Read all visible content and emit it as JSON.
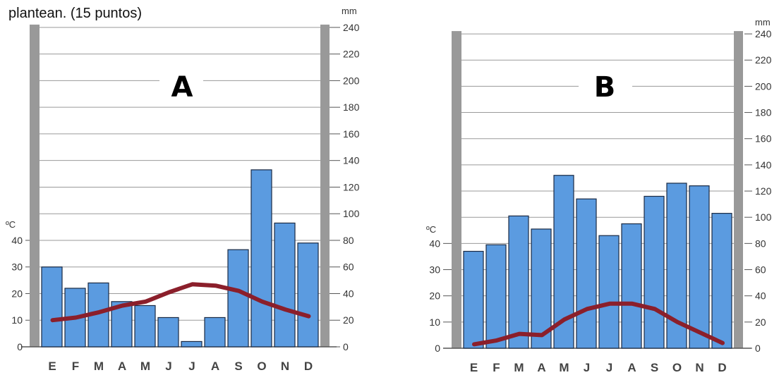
{
  "caption": "plantean. (15 puntos)",
  "chart_data": [
    {
      "type": "bar",
      "title": "A",
      "categories": [
        "E",
        "F",
        "M",
        "A",
        "M",
        "J",
        "J",
        "A",
        "S",
        "O",
        "N",
        "D"
      ],
      "series": [
        {
          "kind": "bar",
          "axis": "right",
          "values": [
            60,
            44,
            48,
            34,
            31,
            22,
            4,
            22,
            73,
            133,
            93,
            78
          ]
        },
        {
          "kind": "line",
          "axis": "left",
          "values": [
            10,
            11,
            13,
            15.5,
            17,
            20.5,
            23.5,
            23,
            21,
            17,
            14,
            11.5
          ]
        }
      ],
      "left_axis": {
        "label": "ºC",
        "ticks": [
          0,
          10,
          20,
          30,
          40
        ],
        "range": [
          0,
          120
        ]
      },
      "right_axis": {
        "label": "mm",
        "ticks": [
          0,
          20,
          40,
          60,
          80,
          100,
          120,
          140,
          160,
          180,
          200,
          220,
          240
        ],
        "range": [
          0,
          240
        ]
      },
      "grid": true,
      "colors": {
        "bars": "#5b9be0",
        "line": "#8b1f2b",
        "side_bars": "#999999"
      }
    },
    {
      "type": "bar",
      "title": "B",
      "categories": [
        "E",
        "F",
        "M",
        "A",
        "M",
        "J",
        "J",
        "A",
        "S",
        "O",
        "N",
        "D"
      ],
      "series": [
        {
          "kind": "bar",
          "axis": "right",
          "values": [
            74,
            79,
            101,
            91,
            132,
            114,
            86,
            95,
            116,
            126,
            124,
            103
          ]
        },
        {
          "kind": "line",
          "axis": "left",
          "values": [
            1.5,
            3,
            5.5,
            5,
            11,
            15,
            17,
            17,
            15,
            10,
            6,
            2
          ]
        }
      ],
      "left_axis": {
        "label": "ºC",
        "ticks": [
          0,
          10,
          20,
          30,
          40
        ],
        "range": [
          0,
          120
        ]
      },
      "right_axis": {
        "label": "mm",
        "ticks": [
          0,
          20,
          40,
          60,
          80,
          100,
          120,
          140,
          160,
          180,
          200,
          220,
          240
        ],
        "range": [
          0,
          240
        ]
      },
      "grid": true,
      "colors": {
        "bars": "#5b9be0",
        "line": "#8b1f2b",
        "side_bars": "#999999"
      }
    }
  ]
}
